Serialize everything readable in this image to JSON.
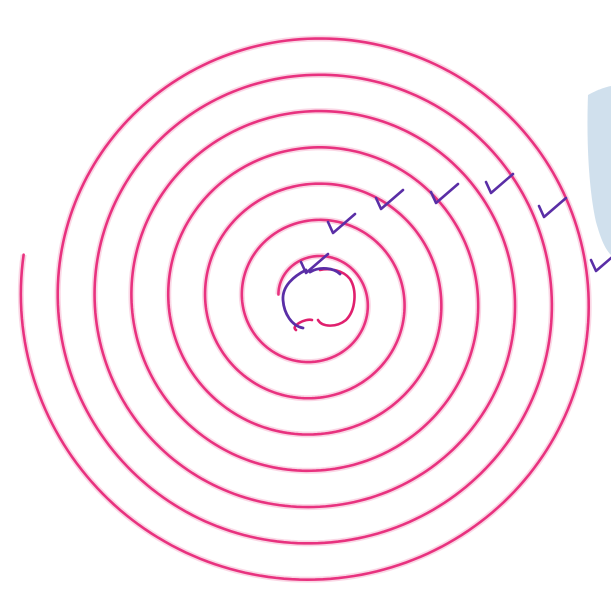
{
  "colors": {
    "background": "#ffffff",
    "spiral_stroke": "#e8327f",
    "spiral_glow": "#f6b6d0",
    "check_ink": "#5a2ea6",
    "center_ink_red": "#e0206e",
    "backdrop_shape": "#a9c6de"
  },
  "spiral": {
    "ring_count": 7
  },
  "checkmarks": {
    "count": 7
  }
}
